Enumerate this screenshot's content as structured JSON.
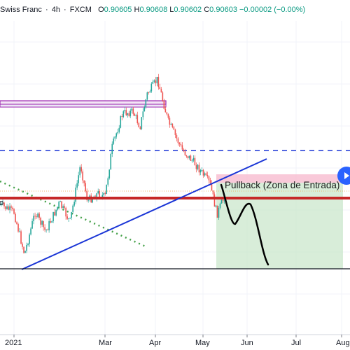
{
  "header": {
    "symbol": "Swiss Franc",
    "interval": "4h",
    "exchange": "FXCM",
    "open_label": "O",
    "open": "0.90605",
    "high_label": "H",
    "high": "0.90608",
    "low_label": "L",
    "low": "0.90602",
    "close_label": "C",
    "close": "0.90603",
    "change": "−0.00002 (−0.00%)"
  },
  "annotation": {
    "pullback_text": "Pullback (Zona de Entrada)"
  },
  "edge_text": "o",
  "colors": {
    "bullish": "#26a69a",
    "bearish": "#ef5350",
    "background": "#ffffff",
    "resistance_zone": "#9c27b0",
    "support_line": "#c62828",
    "dashed_line": "#1a35d6",
    "trend_line": "#1a35d6",
    "dotted_line": "#43a047",
    "stop_zone": "#f8bbd0",
    "target_zone": "#c8e6c9",
    "nav_button": "#2962ff"
  },
  "chart_data": {
    "type": "candlestick",
    "x_axis_labels": [
      "2021",
      "Mar",
      "Apr",
      "May",
      "Jun",
      "Jul",
      "Aug"
    ],
    "series_description": "Swiss Franc 4h price path",
    "price_path_points": [
      {
        "t": 0.0,
        "p": 0.34
      },
      {
        "t": 0.04,
        "p": 0.3
      },
      {
        "t": 0.07,
        "p": 0.08
      },
      {
        "t": 0.1,
        "p": 0.3
      },
      {
        "t": 0.13,
        "p": 0.2
      },
      {
        "t": 0.17,
        "p": 0.35
      },
      {
        "t": 0.2,
        "p": 0.25
      },
      {
        "t": 0.23,
        "p": 0.55
      },
      {
        "t": 0.25,
        "p": 0.36
      },
      {
        "t": 0.28,
        "p": 0.4
      },
      {
        "t": 0.3,
        "p": 0.38
      },
      {
        "t": 0.32,
        "p": 0.64
      },
      {
        "t": 0.35,
        "p": 0.82
      },
      {
        "t": 0.38,
        "p": 0.83
      },
      {
        "t": 0.4,
        "p": 0.75
      },
      {
        "t": 0.42,
        "p": 0.92
      },
      {
        "t": 0.45,
        "p": 1.0
      },
      {
        "t": 0.48,
        "p": 0.78
      },
      {
        "t": 0.52,
        "p": 0.63
      },
      {
        "t": 0.56,
        "p": 0.55
      },
      {
        "t": 0.6,
        "p": 0.45
      },
      {
        "t": 0.62,
        "p": 0.29
      },
      {
        "t": 0.645,
        "p": 0.4
      }
    ]
  }
}
